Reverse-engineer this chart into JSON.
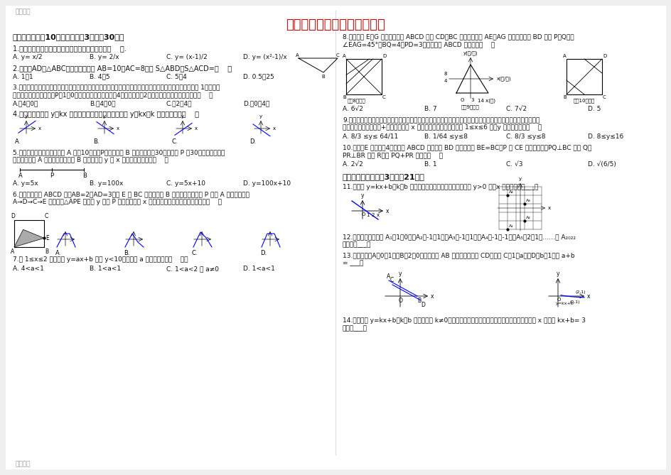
{
  "bg_color": "#f0f0f0",
  "page_bg": "#ffffff",
  "watermark_color": "#999999",
  "title_color": "#cc0000",
  "title": "八年级下册数学知识竞赛试题",
  "body_color": "#111111"
}
